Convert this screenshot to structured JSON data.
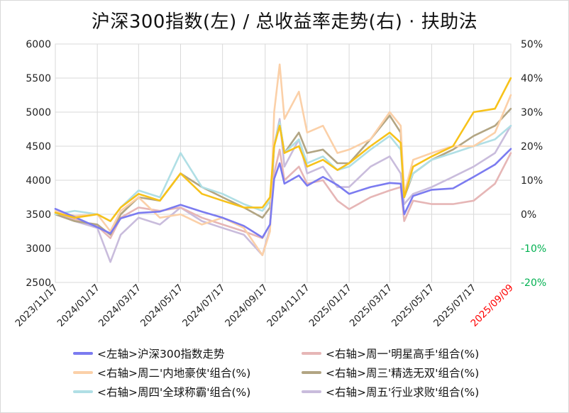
{
  "chart_data": {
    "type": "line",
    "title": "沪深300指数(左)  /  总收益率走势(右) · 扶助法",
    "x_tick_labels": [
      "2023/11/17",
      "2024/01/17",
      "2024/03/17",
      "2024/05/17",
      "2024/07/17",
      "2024/09/17",
      "2024/11/17",
      "2025/01/17",
      "2025/03/17",
      "2025/05/17",
      "2025/07/17",
      "2025/09/09"
    ],
    "x_tick_highlight_color": "#ff0000",
    "y_left": {
      "min": 2500,
      "max": 6000,
      "step": 500,
      "tick_labels": [
        "2500",
        "3000",
        "3500",
        "4000",
        "4500",
        "5000",
        "5500",
        "6000"
      ]
    },
    "y_right": {
      "min": -20,
      "max": 50,
      "step": 10,
      "tick_labels": [
        "-20%",
        "-10%",
        "0%",
        "10%",
        "20%",
        "30%",
        "40%",
        "50%"
      ],
      "negative_color": "#00b050"
    },
    "grid": true,
    "legend_position": "bottom",
    "series": [
      {
        "name": "<左轴>沪深300指数走势",
        "axis": "left",
        "color": "#7b7bf0",
        "points": [
          [
            "2023/11/17",
            3580
          ],
          [
            "2023/12/15",
            3460
          ],
          [
            "2024/01/17",
            3310
          ],
          [
            "2024/02/05",
            3220
          ],
          [
            "2024/02/20",
            3440
          ],
          [
            "2024/03/17",
            3520
          ],
          [
            "2024/04/17",
            3540
          ],
          [
            "2024/05/17",
            3640
          ],
          [
            "2024/06/17",
            3540
          ],
          [
            "2024/07/17",
            3450
          ],
          [
            "2024/08/17",
            3330
          ],
          [
            "2024/09/13",
            3160
          ],
          [
            "2024/09/24",
            3350
          ],
          [
            "2024/09/30",
            4020
          ],
          [
            "2024/10/08",
            4250
          ],
          [
            "2024/10/15",
            3950
          ],
          [
            "2024/11/05",
            4070
          ],
          [
            "2024/11/17",
            3920
          ],
          [
            "2024/12/10",
            4050
          ],
          [
            "2024/12/31",
            3930
          ],
          [
            "2025/01/17",
            3800
          ],
          [
            "2025/02/17",
            3900
          ],
          [
            "2025/03/17",
            3960
          ],
          [
            "2025/04/02",
            3950
          ],
          [
            "2025/04/07",
            3500
          ],
          [
            "2025/04/20",
            3770
          ],
          [
            "2025/05/17",
            3860
          ],
          [
            "2025/06/17",
            3880
          ],
          [
            "2025/07/17",
            4050
          ],
          [
            "2025/08/17",
            4230
          ],
          [
            "2025/09/09",
            4460
          ]
        ]
      },
      {
        "name": "<右轴>周一'明星高手'组合(%)",
        "axis": "right",
        "color": "#e6b6b6",
        "points": [
          [
            "2023/11/17",
            0.0
          ],
          [
            "2023/12/15",
            -1.5
          ],
          [
            "2024/01/17",
            -3.5
          ],
          [
            "2024/02/05",
            -7.0
          ],
          [
            "2024/02/20",
            -1.0
          ],
          [
            "2024/03/17",
            2.0
          ],
          [
            "2024/04/17",
            1.0
          ],
          [
            "2024/05/17",
            2.0
          ],
          [
            "2024/06/17",
            -1.0
          ],
          [
            "2024/07/17",
            -3.0
          ],
          [
            "2024/08/17",
            -5.0
          ],
          [
            "2024/09/13",
            -7.0
          ],
          [
            "2024/09/24",
            -3.0
          ],
          [
            "2024/09/30",
            12.0
          ],
          [
            "2024/10/08",
            19.0
          ],
          [
            "2024/10/15",
            10.0
          ],
          [
            "2024/11/05",
            14.0
          ],
          [
            "2024/11/17",
            9.0
          ],
          [
            "2024/12/10",
            10.0
          ],
          [
            "2024/12/31",
            4.0
          ],
          [
            "2025/01/17",
            1.5
          ],
          [
            "2025/02/17",
            5.0
          ],
          [
            "2025/03/17",
            7.0
          ],
          [
            "2025/04/02",
            8.0
          ],
          [
            "2025/04/07",
            -2.0
          ],
          [
            "2025/04/20",
            4.0
          ],
          [
            "2025/05/17",
            3.0
          ],
          [
            "2025/06/17",
            3.0
          ],
          [
            "2025/07/17",
            4.0
          ],
          [
            "2025/08/17",
            9.0
          ],
          [
            "2025/09/09",
            18.0
          ]
        ]
      },
      {
        "name": "<右轴>周二'内地豪侠'组合(%)",
        "axis": "right",
        "color": "#fbd0a8",
        "points": [
          [
            "2023/11/17",
            1.0
          ],
          [
            "2023/12/15",
            -0.5
          ],
          [
            "2024/01/17",
            0.0
          ],
          [
            "2024/02/05",
            -5.0
          ],
          [
            "2024/02/20",
            1.0
          ],
          [
            "2024/03/17",
            5.0
          ],
          [
            "2024/04/17",
            -1.0
          ],
          [
            "2024/05/17",
            0.0
          ],
          [
            "2024/06/17",
            -3.0
          ],
          [
            "2024/07/17",
            -1.0
          ],
          [
            "2024/08/17",
            -4.0
          ],
          [
            "2024/09/13",
            -12.0
          ],
          [
            "2024/09/24",
            -5.0
          ],
          [
            "2024/09/30",
            30.0
          ],
          [
            "2024/10/08",
            44.0
          ],
          [
            "2024/10/15",
            28.0
          ],
          [
            "2024/11/05",
            36.0
          ],
          [
            "2024/11/17",
            24.0
          ],
          [
            "2024/12/10",
            26.0
          ],
          [
            "2024/12/31",
            18.0
          ],
          [
            "2025/01/17",
            19.0
          ],
          [
            "2025/02/17",
            22.0
          ],
          [
            "2025/03/17",
            30.0
          ],
          [
            "2025/04/02",
            26.0
          ],
          [
            "2025/04/07",
            6.0
          ],
          [
            "2025/04/20",
            16.0
          ],
          [
            "2025/05/17",
            18.0
          ],
          [
            "2025/06/17",
            20.0
          ],
          [
            "2025/07/17",
            20.0
          ],
          [
            "2025/08/17",
            24.0
          ],
          [
            "2025/09/09",
            35.0
          ]
        ]
      },
      {
        "name": "<右轴>周三'精选无双'组合(%)",
        "axis": "right",
        "color": "#b2a583",
        "points": [
          [
            "2023/11/17",
            0.0
          ],
          [
            "2023/12/15",
            -2.0
          ],
          [
            "2024/01/17",
            -3.0
          ],
          [
            "2024/02/05",
            -6.0
          ],
          [
            "2024/02/20",
            0.0
          ],
          [
            "2024/03/17",
            5.0
          ],
          [
            "2024/04/17",
            4.0
          ],
          [
            "2024/05/17",
            12.0
          ],
          [
            "2024/06/17",
            8.0
          ],
          [
            "2024/07/17",
            5.0
          ],
          [
            "2024/08/17",
            2.0
          ],
          [
            "2024/09/13",
            -1.0
          ],
          [
            "2024/09/24",
            2.0
          ],
          [
            "2024/09/30",
            20.0
          ],
          [
            "2024/10/08",
            27.0
          ],
          [
            "2024/10/15",
            18.0
          ],
          [
            "2024/11/05",
            24.0
          ],
          [
            "2024/11/17",
            18.0
          ],
          [
            "2024/12/10",
            19.0
          ],
          [
            "2024/12/31",
            15.0
          ],
          [
            "2025/01/17",
            15.0
          ],
          [
            "2025/02/17",
            22.0
          ],
          [
            "2025/03/17",
            29.0
          ],
          [
            "2025/04/02",
            24.0
          ],
          [
            "2025/04/07",
            5.0
          ],
          [
            "2025/04/20",
            12.0
          ],
          [
            "2025/05/17",
            16.0
          ],
          [
            "2025/06/17",
            19.0
          ],
          [
            "2025/07/17",
            23.0
          ],
          [
            "2025/08/17",
            26.0
          ],
          [
            "2025/09/09",
            31.0
          ]
        ]
      },
      {
        "name": "<右轴>周四'全球称霸'组合(%)",
        "axis": "right",
        "color": "#b0dfe5",
        "points": [
          [
            "2023/11/17",
            0.0
          ],
          [
            "2023/12/15",
            1.0
          ],
          [
            "2024/01/17",
            0.0
          ],
          [
            "2024/02/05",
            -2.0
          ],
          [
            "2024/02/20",
            2.0
          ],
          [
            "2024/03/17",
            7.0
          ],
          [
            "2024/04/17",
            5.0
          ],
          [
            "2024/05/17",
            18.0
          ],
          [
            "2024/06/17",
            8.0
          ],
          [
            "2024/07/17",
            6.0
          ],
          [
            "2024/08/17",
            3.0
          ],
          [
            "2024/09/13",
            1.0
          ],
          [
            "2024/09/24",
            4.0
          ],
          [
            "2024/09/30",
            20.0
          ],
          [
            "2024/10/08",
            27.0
          ],
          [
            "2024/10/15",
            18.0
          ],
          [
            "2024/11/05",
            22.0
          ],
          [
            "2024/11/17",
            15.0
          ],
          [
            "2024/12/10",
            17.0
          ],
          [
            "2024/12/31",
            13.0
          ],
          [
            "2025/01/17",
            14.0
          ],
          [
            "2025/02/17",
            19.0
          ],
          [
            "2025/03/17",
            23.0
          ],
          [
            "2025/04/02",
            19.0
          ],
          [
            "2025/04/07",
            6.0
          ],
          [
            "2025/04/20",
            12.0
          ],
          [
            "2025/05/17",
            16.0
          ],
          [
            "2025/06/17",
            18.0
          ],
          [
            "2025/07/17",
            20.0
          ],
          [
            "2025/08/17",
            22.0
          ],
          [
            "2025/09/09",
            26.0
          ]
        ]
      },
      {
        "name": "<右轴>周五'行业求败'组合(%)",
        "axis": "right",
        "color": "#c9bcdc",
        "points": [
          [
            "2023/11/17",
            0.0
          ],
          [
            "2023/12/15",
            -2.0
          ],
          [
            "2024/01/17",
            -4.0
          ],
          [
            "2024/02/05",
            -14.0
          ],
          [
            "2024/02/20",
            -6.0
          ],
          [
            "2024/03/17",
            -1.0
          ],
          [
            "2024/04/17",
            -3.0
          ],
          [
            "2024/05/17",
            2.0
          ],
          [
            "2024/06/17",
            -2.0
          ],
          [
            "2024/07/17",
            -4.0
          ],
          [
            "2024/08/17",
            -6.0
          ],
          [
            "2024/09/13",
            -12.0
          ],
          [
            "2024/09/24",
            -4.0
          ],
          [
            "2024/09/30",
            20.0
          ],
          [
            "2024/10/08",
            28.0
          ],
          [
            "2024/10/15",
            14.0
          ],
          [
            "2024/11/05",
            22.0
          ],
          [
            "2024/11/17",
            12.0
          ],
          [
            "2024/12/10",
            14.0
          ],
          [
            "2024/12/31",
            8.0
          ],
          [
            "2025/01/17",
            8.0
          ],
          [
            "2025/02/17",
            14.0
          ],
          [
            "2025/03/17",
            17.0
          ],
          [
            "2025/04/02",
            12.0
          ],
          [
            "2025/04/07",
            3.0
          ],
          [
            "2025/04/20",
            6.0
          ],
          [
            "2025/05/17",
            8.0
          ],
          [
            "2025/06/17",
            11.0
          ],
          [
            "2025/07/17",
            14.0
          ],
          [
            "2025/08/17",
            18.0
          ],
          [
            "2025/09/09",
            26.0
          ]
        ]
      },
      {
        "name": "",
        "axis": "right",
        "color": "#f7c21a",
        "in_legend": false,
        "points": [
          [
            "2023/11/17",
            0.5
          ],
          [
            "2023/12/15",
            -1.0
          ],
          [
            "2024/01/17",
            0.0
          ],
          [
            "2024/02/05",
            -2.0
          ],
          [
            "2024/02/20",
            2.0
          ],
          [
            "2024/03/17",
            6.0
          ],
          [
            "2024/04/17",
            4.0
          ],
          [
            "2024/05/17",
            12.0
          ],
          [
            "2024/06/17",
            6.0
          ],
          [
            "2024/07/17",
            4.0
          ],
          [
            "2024/08/17",
            2.0
          ],
          [
            "2024/09/13",
            2.0
          ],
          [
            "2024/09/24",
            5.0
          ],
          [
            "2024/09/30",
            20.0
          ],
          [
            "2024/10/08",
            26.0
          ],
          [
            "2024/10/15",
            18.0
          ],
          [
            "2024/11/05",
            20.0
          ],
          [
            "2024/11/17",
            14.0
          ],
          [
            "2024/12/10",
            16.0
          ],
          [
            "2024/12/31",
            13.0
          ],
          [
            "2025/01/17",
            15.0
          ],
          [
            "2025/02/17",
            20.0
          ],
          [
            "2025/03/17",
            24.0
          ],
          [
            "2025/04/02",
            21.0
          ],
          [
            "2025/04/07",
            5.0
          ],
          [
            "2025/04/20",
            14.0
          ],
          [
            "2025/05/17",
            17.0
          ],
          [
            "2025/06/17",
            20.0
          ],
          [
            "2025/07/17",
            30.0
          ],
          [
            "2025/08/17",
            31.0
          ],
          [
            "2025/09/09",
            40.0
          ]
        ]
      }
    ]
  }
}
